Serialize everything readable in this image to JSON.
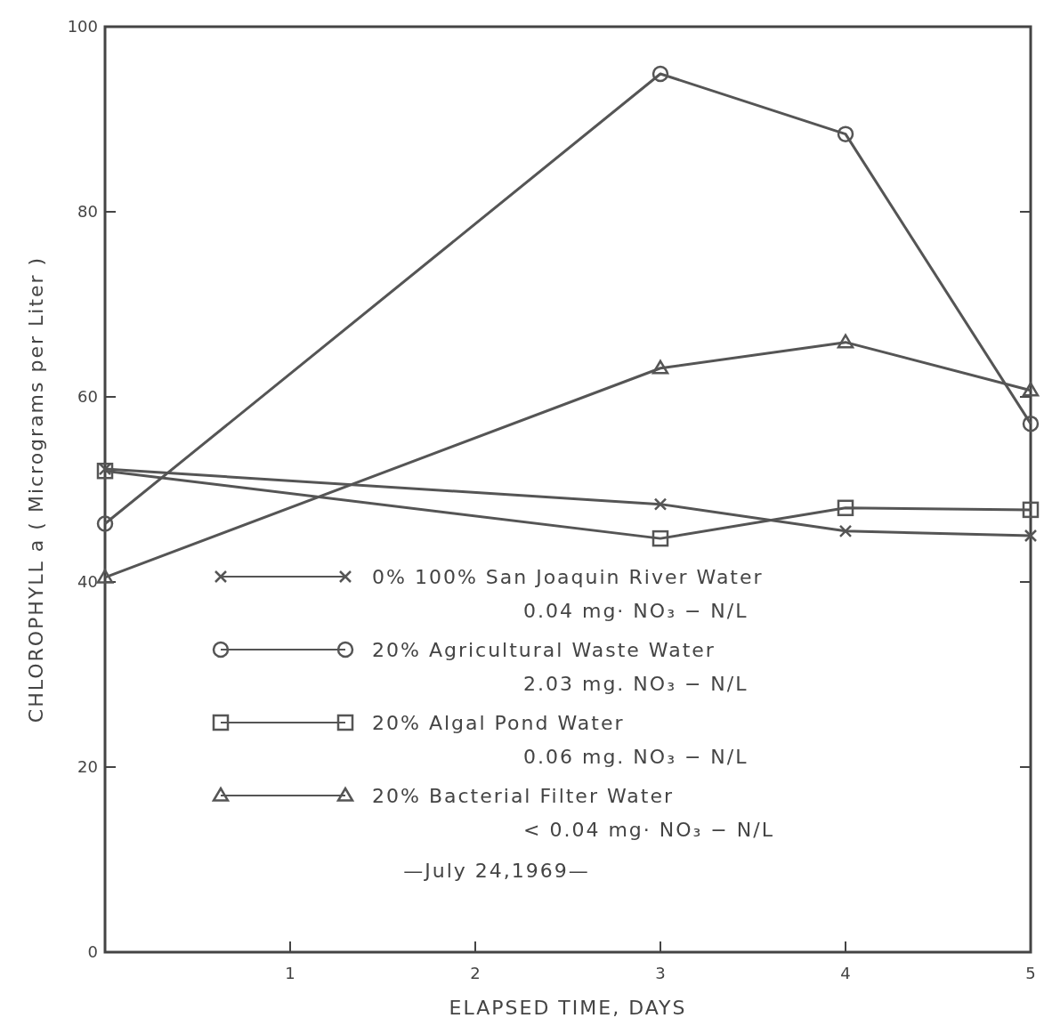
{
  "chart_data": {
    "type": "line",
    "xlabel": "ELAPSED TIME, DAYS",
    "ylabel": "CHLOROPHYLL a ( Micrograms per Liter )",
    "x": [
      0,
      3,
      4,
      5
    ],
    "xlim": [
      0,
      5
    ],
    "xticks": [
      1,
      2,
      3,
      4,
      5
    ],
    "ylim": [
      0,
      100
    ],
    "yticks": [
      0,
      20,
      40,
      60,
      80,
      100
    ],
    "grid": false,
    "legend": "bottom",
    "line_style": "solid",
    "annotations": [
      "—July 24,1969—"
    ],
    "series": [
      {
        "name": "0%  100% San Joaquin River Water\n0.04 mg· NO₃ − N/L",
        "color": "#555555",
        "marker": "cross",
        "values": [
          52.2,
          48.4,
          45.5,
          45.0
        ]
      },
      {
        "name": "20% Agricultural Waste Water\n2.03 mg. NO₃ − N/L",
        "color": "#555555",
        "marker": "circle",
        "values": [
          46.3,
          94.9,
          88.4,
          57.1
        ]
      },
      {
        "name": "20% Algal Pond Water\n0.06 mg. NO₃ − N/L",
        "color": "#555555",
        "marker": "square",
        "values": [
          52.0,
          44.7,
          48.0,
          47.8
        ]
      },
      {
        "name": "20% Bacterial Filter Water\n< 0.04 mg· NO₃ − N/L",
        "color": "#555555",
        "marker": "triangle",
        "values": [
          40.5,
          63.1,
          65.9,
          60.7
        ]
      }
    ]
  }
}
